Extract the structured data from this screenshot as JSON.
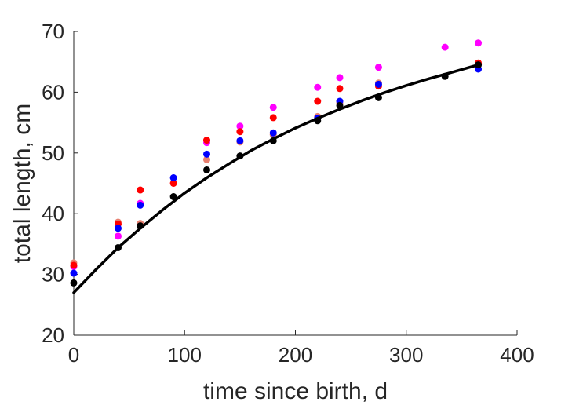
{
  "chart_data": {
    "type": "scatter",
    "title": "",
    "xlabel": "time since birth, d",
    "ylabel": "total length, cm",
    "xlim": [
      0,
      400
    ],
    "ylim": [
      20,
      70
    ],
    "xticks": [
      0,
      100,
      200,
      300,
      400
    ],
    "yticks": [
      20,
      30,
      40,
      50,
      60,
      70
    ],
    "grid": false,
    "legend": "none",
    "series": [
      {
        "color": "#e88070",
        "points": [
          [
            0,
            31.9
          ],
          [
            40,
            38.6
          ],
          [
            60,
            38.4
          ],
          [
            120,
            48.9
          ],
          [
            150,
            51.8
          ],
          [
            180,
            53.0
          ],
          [
            220,
            56.0
          ],
          [
            240,
            58.2
          ],
          [
            275,
            61.5
          ]
        ]
      },
      {
        "color": "#ff00ff",
        "points": [
          [
            0,
            31.3
          ],
          [
            40,
            36.3
          ],
          [
            60,
            41.7
          ],
          [
            120,
            51.7
          ],
          [
            150,
            54.4
          ],
          [
            180,
            57.5
          ],
          [
            220,
            60.8
          ],
          [
            240,
            62.4
          ],
          [
            275,
            64.1
          ],
          [
            335,
            67.4
          ],
          [
            365,
            68.1
          ]
        ]
      },
      {
        "color": "#ff0000",
        "points": [
          [
            0,
            31.5
          ],
          [
            40,
            38.3
          ],
          [
            60,
            43.9
          ],
          [
            90,
            45.0
          ],
          [
            120,
            52.1
          ],
          [
            150,
            53.5
          ],
          [
            180,
            55.8
          ],
          [
            220,
            58.5
          ],
          [
            240,
            60.6
          ],
          [
            275,
            61.0
          ],
          [
            365,
            64.8
          ]
        ]
      },
      {
        "color": "#0000ff",
        "points": [
          [
            0,
            30.2
          ],
          [
            40,
            37.6
          ],
          [
            60,
            41.4
          ],
          [
            90,
            45.9
          ],
          [
            120,
            49.8
          ],
          [
            150,
            52.0
          ],
          [
            180,
            53.3
          ],
          [
            220,
            55.7
          ],
          [
            240,
            58.5
          ],
          [
            275,
            61.3
          ],
          [
            365,
            63.8
          ]
        ]
      },
      {
        "color": "#000000",
        "points": [
          [
            0,
            28.6
          ],
          [
            40,
            34.4
          ],
          [
            60,
            38.0
          ],
          [
            90,
            42.8
          ],
          [
            120,
            47.2
          ],
          [
            150,
            49.5
          ],
          [
            180,
            52.0
          ],
          [
            220,
            55.3
          ],
          [
            240,
            57.8
          ],
          [
            275,
            59.1
          ],
          [
            335,
            62.6
          ],
          [
            365,
            64.5
          ]
        ]
      }
    ],
    "fit_line": {
      "color": "#000000",
      "points": [
        [
          0,
          27.0
        ],
        [
          20,
          30.8
        ],
        [
          40,
          34.4
        ],
        [
          60,
          37.6
        ],
        [
          80,
          40.6
        ],
        [
          100,
          43.4
        ],
        [
          120,
          45.9
        ],
        [
          140,
          48.2
        ],
        [
          160,
          50.4
        ],
        [
          180,
          52.3
        ],
        [
          200,
          54.1
        ],
        [
          220,
          55.7
        ],
        [
          240,
          57.2
        ],
        [
          260,
          58.6
        ],
        [
          280,
          59.9
        ],
        [
          300,
          61.1
        ],
        [
          320,
          62.2
        ],
        [
          340,
          63.2
        ],
        [
          365,
          64.5
        ]
      ]
    }
  }
}
